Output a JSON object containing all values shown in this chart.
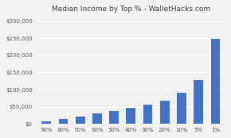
{
  "title": "Median Income by Top % - WalletHacks.com",
  "categories": [
    "90%",
    "80%",
    "70%",
    "60%",
    "50%",
    "40%",
    "30%",
    "20%",
    "10%",
    "5%",
    "1%"
  ],
  "values": [
    8000,
    15000,
    22000,
    30000,
    38000,
    46000,
    56000,
    68000,
    90000,
    128000,
    248000
  ],
  "bar_color": "#4472C4",
  "background_color": "#F2F2F2",
  "plot_bg_color": "#F2F2F2",
  "grid_color": "#FFFFFF",
  "ylim": [
    0,
    320000
  ],
  "yticks": [
    0,
    50000,
    100000,
    150000,
    200000,
    250000,
    300000
  ],
  "title_fontsize": 6.5,
  "tick_fontsize": 5.0,
  "title_color": "#404040"
}
